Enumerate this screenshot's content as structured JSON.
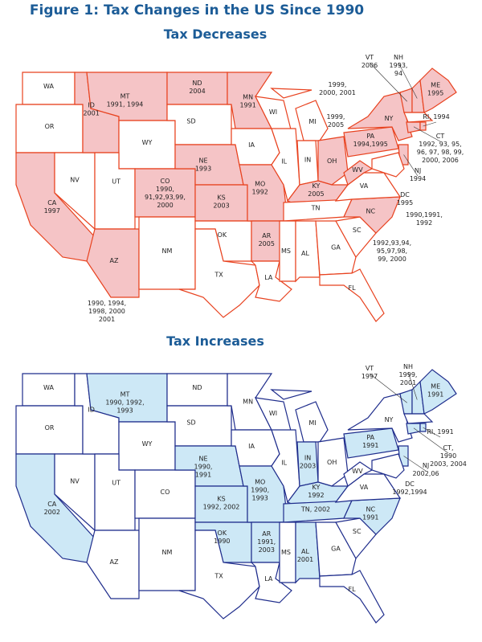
{
  "figure_title": "Figure 1: Tax Changes in the US Since 1990",
  "maps": [
    {
      "title": "Tax Decreases",
      "border_color": "#e8421f",
      "highlight_color": "#f5c4c6",
      "states": [
        {
          "label": [
            "WA"
          ],
          "highlighted": false
        },
        {
          "label": [
            "OR"
          ],
          "highlighted": false
        },
        {
          "label": [
            "CA",
            "1997"
          ],
          "highlighted": true
        },
        {
          "label": [
            "NV"
          ],
          "highlighted": false
        },
        {
          "label": [
            "ID",
            "2001"
          ],
          "highlighted": true
        },
        {
          "label": [
            "MT",
            "1991, 1994"
          ],
          "highlighted": true
        },
        {
          "label": [
            "WY"
          ],
          "highlighted": false
        },
        {
          "label": [
            "UT"
          ],
          "highlighted": false
        },
        {
          "label": [
            "CO",
            "1990,",
            "91,92,93,99,",
            "2000"
          ],
          "highlighted": true
        },
        {
          "label": [
            "AZ"
          ],
          "highlighted": true
        },
        {
          "label": [
            "NM"
          ],
          "highlighted": false
        },
        {
          "label": [
            "ND",
            "2004"
          ],
          "highlighted": true
        },
        {
          "label": [
            "SD"
          ],
          "highlighted": false
        },
        {
          "label": [
            "NE",
            "1993"
          ],
          "highlighted": true
        },
        {
          "label": [
            "KS",
            "2003"
          ],
          "highlighted": true
        },
        {
          "label": [
            "OK"
          ],
          "highlighted": false
        },
        {
          "label": [
            "TX"
          ],
          "highlighted": false
        },
        {
          "label": [
            "MN",
            "1991"
          ],
          "highlighted": true
        },
        {
          "label": [
            "IA"
          ],
          "highlighted": false
        },
        {
          "label": [
            "MO",
            "1992"
          ],
          "highlighted": true
        },
        {
          "label": [
            "AR",
            "2005"
          ],
          "highlighted": true
        },
        {
          "label": [
            "LA"
          ],
          "highlighted": false
        },
        {
          "label": [
            "WI"
          ],
          "highlighted": false
        },
        {
          "label": [
            "IL"
          ],
          "highlighted": false
        },
        {
          "label": [
            "MI"
          ],
          "highlighted": false
        },
        {
          "label": [
            "IN"
          ],
          "highlighted": false
        },
        {
          "label": [
            "OH"
          ],
          "highlighted": true
        },
        {
          "label": [
            "KY",
            "2005"
          ],
          "highlighted": true
        },
        {
          "label": [
            "TN"
          ],
          "highlighted": false
        },
        {
          "label": [
            "MS"
          ],
          "highlighted": false
        },
        {
          "label": [
            "AL"
          ],
          "highlighted": false
        },
        {
          "label": [
            "GA"
          ],
          "highlighted": false
        },
        {
          "label": [
            "FL"
          ],
          "highlighted": false
        },
        {
          "label": [
            "SC"
          ],
          "highlighted": false
        },
        {
          "label": [
            "NC"
          ],
          "highlighted": true
        },
        {
          "label": [
            "VA"
          ],
          "highlighted": false
        },
        {
          "label": [
            "WV"
          ],
          "highlighted": true
        },
        {
          "label": [
            "PA",
            "1994,1995"
          ],
          "highlighted": true
        },
        {
          "label": [
            "NY"
          ],
          "highlighted": true
        },
        {
          "label": [
            "NJ",
            "1994"
          ],
          "highlighted": true
        },
        {
          "label": [
            "VT",
            "2006"
          ],
          "highlighted": true
        },
        {
          "label": [
            "NH",
            "1993,",
            "94"
          ],
          "highlighted": true
        },
        {
          "label": [
            "ME",
            "1995"
          ],
          "highlighted": true
        },
        {
          "label": [
            "CT",
            "1992, 93, 95,",
            "96, 97, 98, 99,",
            "2000, 2006"
          ],
          "highlighted": true
        },
        {
          "label": [
            "RI, 1994"
          ],
          "highlighted": true
        },
        {
          "label": [
            "DC",
            "1995"
          ]
        }
      ],
      "annotations": [
        {
          "lines": [
            "1999,",
            "2000, 2001"
          ]
        },
        {
          "lines": [
            "1999,",
            "2005"
          ]
        },
        {
          "lines": [
            "1990,1991,",
            "1992"
          ]
        },
        {
          "lines": [
            "1992,93,94,",
            "95,97,98,",
            "99, 2000"
          ]
        },
        {
          "lines": [
            "1990, 1994,",
            "1998, 2000",
            "2001"
          ]
        }
      ]
    },
    {
      "title": "Tax Increases",
      "border_color": "#1f2d8c",
      "highlight_color": "#cde8f6",
      "states": [
        {
          "label": [
            "WA"
          ],
          "highlighted": false
        },
        {
          "label": [
            "OR"
          ],
          "highlighted": false
        },
        {
          "label": [
            "CA",
            "2002"
          ],
          "highlighted": true
        },
        {
          "label": [
            "NV"
          ],
          "highlighted": false
        },
        {
          "label": [
            "ID"
          ],
          "highlighted": false
        },
        {
          "label": [
            "MT",
            "1990, 1992,",
            "1993"
          ],
          "highlighted": true
        },
        {
          "label": [
            "WY"
          ],
          "highlighted": false
        },
        {
          "label": [
            "UT"
          ],
          "highlighted": false
        },
        {
          "label": [
            "CO"
          ],
          "highlighted": false
        },
        {
          "label": [
            "AZ"
          ],
          "highlighted": false
        },
        {
          "label": [
            "NM"
          ],
          "highlighted": false
        },
        {
          "label": [
            "ND"
          ],
          "highlighted": false
        },
        {
          "label": [
            "SD"
          ],
          "highlighted": false
        },
        {
          "label": [
            "NE",
            "1990,",
            "1991"
          ],
          "highlighted": true
        },
        {
          "label": [
            "KS",
            "1992, 2002"
          ],
          "highlighted": true
        },
        {
          "label": [
            "OK",
            "1990"
          ],
          "highlighted": true
        },
        {
          "label": [
            "TX"
          ],
          "highlighted": false
        },
        {
          "label": [
            "MN"
          ],
          "highlighted": false
        },
        {
          "label": [
            "IA"
          ],
          "highlighted": false
        },
        {
          "label": [
            "MO",
            "1990,",
            "1993"
          ],
          "highlighted": true
        },
        {
          "label": [
            "AR",
            "1991,",
            "2003"
          ],
          "highlighted": true
        },
        {
          "label": [
            "LA"
          ],
          "highlighted": false
        },
        {
          "label": [
            "WI"
          ],
          "highlighted": false
        },
        {
          "label": [
            "IL"
          ],
          "highlighted": false
        },
        {
          "label": [
            "MI"
          ],
          "highlighted": false
        },
        {
          "label": [
            "IN",
            "2003"
          ],
          "highlighted": true
        },
        {
          "label": [
            "OH"
          ],
          "highlighted": false
        },
        {
          "label": [
            "KY",
            "1992"
          ],
          "highlighted": true
        },
        {
          "label": [
            "TN, 2002"
          ],
          "highlighted": true
        },
        {
          "label": [
            "MS"
          ],
          "highlighted": false
        },
        {
          "label": [
            "AL",
            "2001"
          ],
          "highlighted": true
        },
        {
          "label": [
            "GA"
          ],
          "highlighted": false
        },
        {
          "label": [
            "FL"
          ],
          "highlighted": false
        },
        {
          "label": [
            "SC"
          ],
          "highlighted": false
        },
        {
          "label": [
            "NC",
            "1991"
          ],
          "highlighted": true
        },
        {
          "label": [
            "VA"
          ],
          "highlighted": false
        },
        {
          "label": [
            "WV"
          ],
          "highlighted": false
        },
        {
          "label": [
            "PA",
            "1991"
          ],
          "highlighted": true
        },
        {
          "label": [
            "NY"
          ],
          "highlighted": false
        },
        {
          "label": [
            "NJ",
            "2002,06"
          ],
          "highlighted": true
        },
        {
          "label": [
            "VT",
            "1997"
          ],
          "highlighted": true
        },
        {
          "label": [
            "NH",
            "1999,",
            "2001"
          ],
          "highlighted": true
        },
        {
          "label": [
            "ME",
            "1991"
          ],
          "highlighted": true
        },
        {
          "label": [
            "CT,",
            "1990",
            "2003, 2004"
          ],
          "highlighted": true
        },
        {
          "label": [
            "RI, 1991"
          ],
          "highlighted": true
        },
        {
          "label": [
            "DC",
            "1992,1994"
          ]
        }
      ],
      "annotations": []
    }
  ]
}
